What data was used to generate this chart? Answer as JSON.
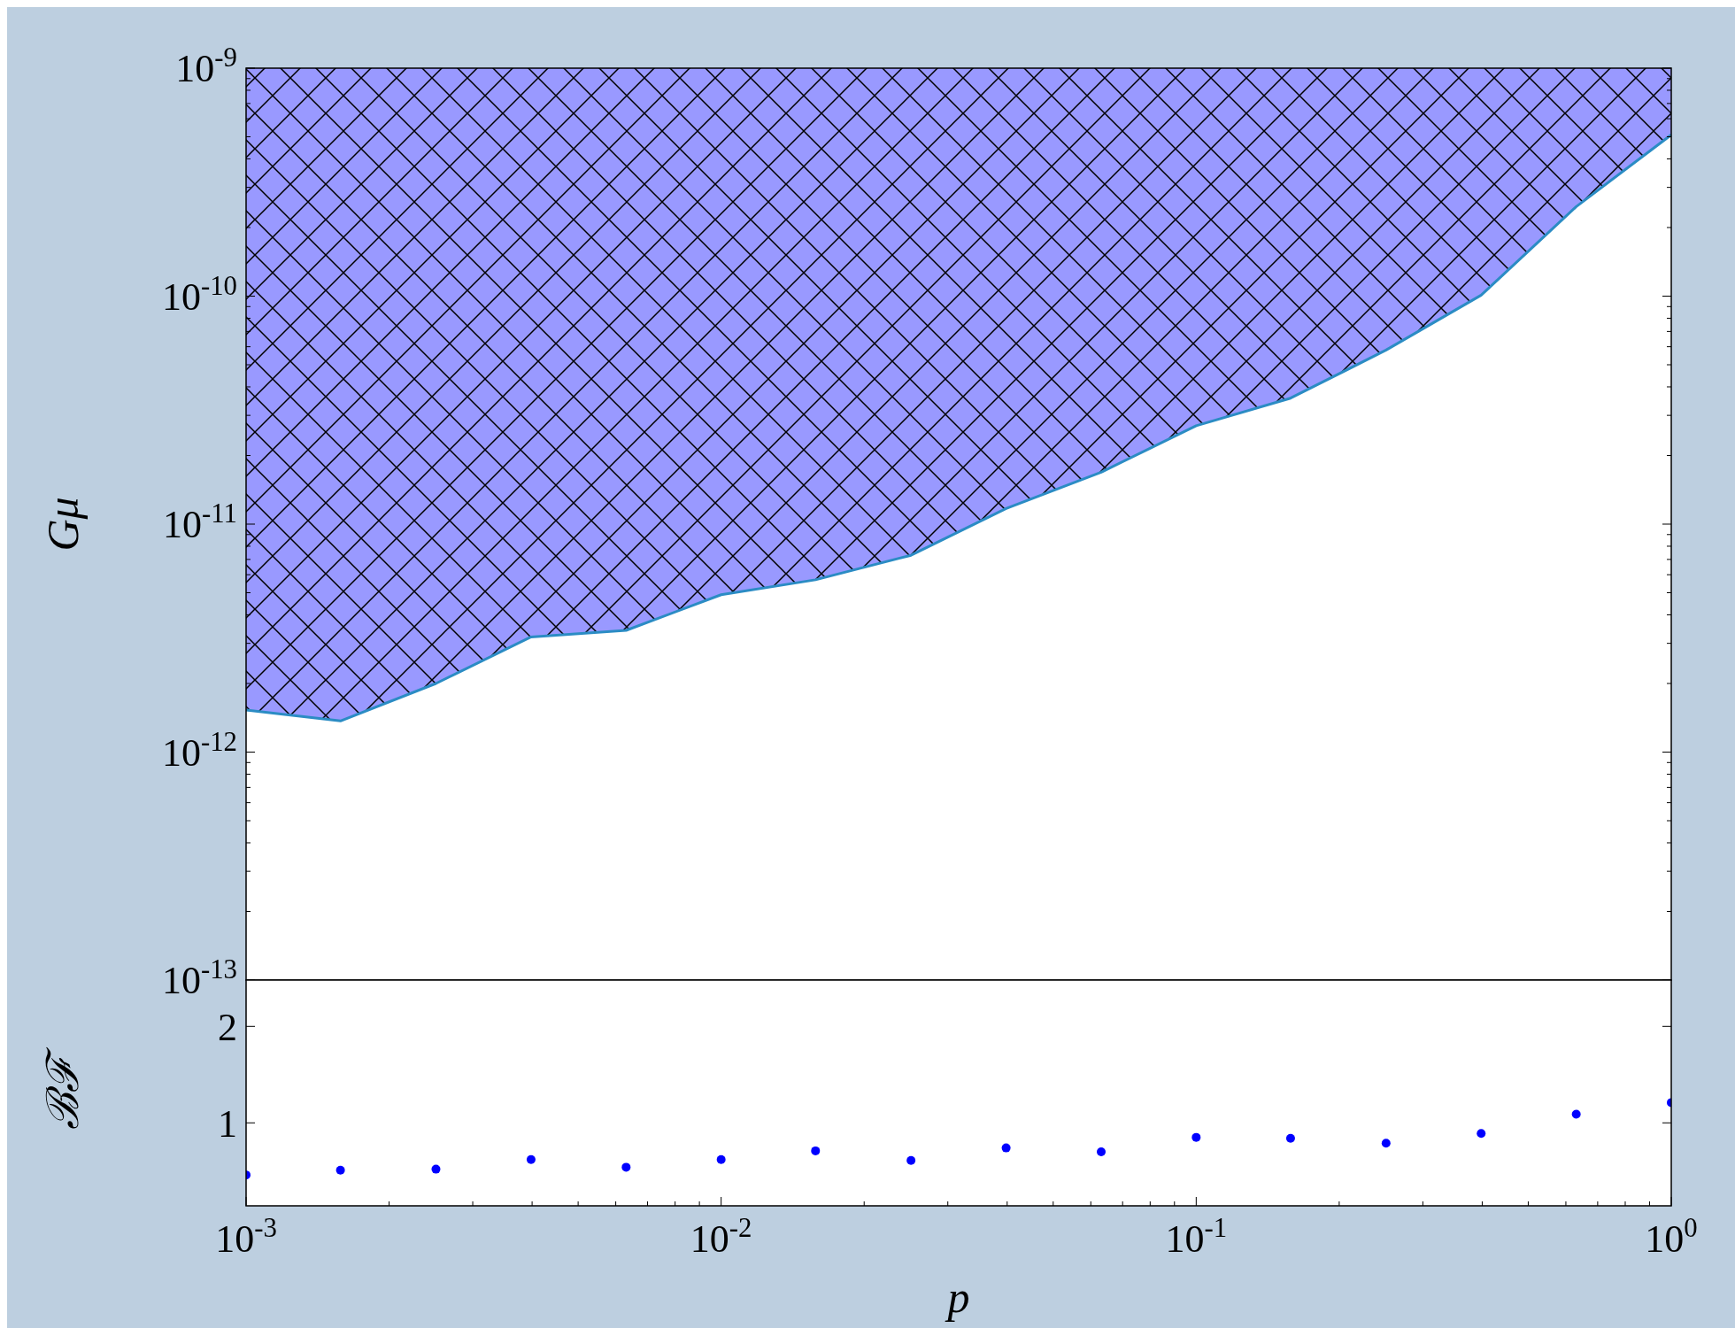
{
  "chart_data": [
    {
      "type": "line",
      "ylabel": "Gμ",
      "log": "xy",
      "tick_labels": "y",
      "marker": "none",
      "line_style": "solid",
      "xlim": [
        0.001,
        1
      ],
      "ylim": [
        1e-13,
        1e-09
      ],
      "yticks": [
        {
          "value": 1e-13,
          "label": "10$^{-13}$"
        },
        {
          "value": 1e-12,
          "label": "10$^{-12}$"
        },
        {
          "value": 1e-11,
          "label": "10$^{-11}$"
        },
        {
          "value": 1e-10,
          "label": "10$^{-10}$"
        },
        {
          "value": 1e-09,
          "label": "10$^{-9}$"
        }
      ],
      "x": [
        0.001,
        0.00158,
        0.00251,
        0.00398,
        0.00631,
        0.01,
        0.0158,
        0.0251,
        0.0398,
        0.0631,
        0.1,
        0.158,
        0.251,
        0.398,
        0.631,
        1
      ],
      "series": [
        {
          "color": "#2b8cc4",
          "values": [
            1.53e-12,
            1.37e-12,
            2e-12,
            3.2e-12,
            3.42e-12,
            4.9e-12,
            5.7e-12,
            7.3e-12,
            1.17e-11,
            1.69e-11,
            2.7e-11,
            3.57e-11,
            5.8e-11,
            1.01e-10,
            2.47e-10,
            5.1e-10
          ],
          "lower": [
            1.53e-12,
            1.37e-12,
            2e-12,
            3.2e-12,
            3.42e-12,
            4.9e-12,
            5.7e-12,
            7.3e-12,
            1.17e-11,
            1.69e-11,
            2.7e-11,
            3.57e-11,
            5.8e-11,
            1.01e-10,
            2.47e-10,
            5.1e-10
          ],
          "upper": [
            1e-09,
            1e-09,
            1e-09,
            1e-09,
            1e-09,
            1e-09,
            1e-09,
            1e-09,
            1e-09,
            1e-09,
            1e-09,
            1e-09,
            1e-09,
            1e-09,
            1e-09,
            1e-09
          ]
        }
      ]
    },
    {
      "type": "scatter",
      "xlabel": "p",
      "ylabel": "ℬℱ",
      "log": "x",
      "marker": "circle",
      "xlim": [
        0.001,
        1
      ],
      "ylim": [
        0.14,
        2.48
      ],
      "yticks": [
        1,
        2
      ],
      "xticks": [
        {
          "value": 0.001,
          "label": "10$^{-3}$"
        },
        {
          "value": 0.01,
          "label": "10$^{-2}$"
        },
        {
          "value": 0.1,
          "label": "10$^{-1}$"
        },
        {
          "value": 1,
          "label": "10$^{0}$"
        }
      ],
      "x": [
        0.001,
        0.00158,
        0.00251,
        0.00398,
        0.00631,
        0.01,
        0.0158,
        0.0251,
        0.0398,
        0.0631,
        0.1,
        0.158,
        0.251,
        0.398,
        0.631,
        1
      ],
      "series": [
        {
          "color": "#0000ff",
          "values": [
            0.46,
            0.51,
            0.52,
            0.62,
            0.54,
            0.62,
            0.71,
            0.61,
            0.74,
            0.7,
            0.85,
            0.84,
            0.79,
            0.89,
            1.09,
            1.21
          ]
        }
      ]
    }
  ]
}
